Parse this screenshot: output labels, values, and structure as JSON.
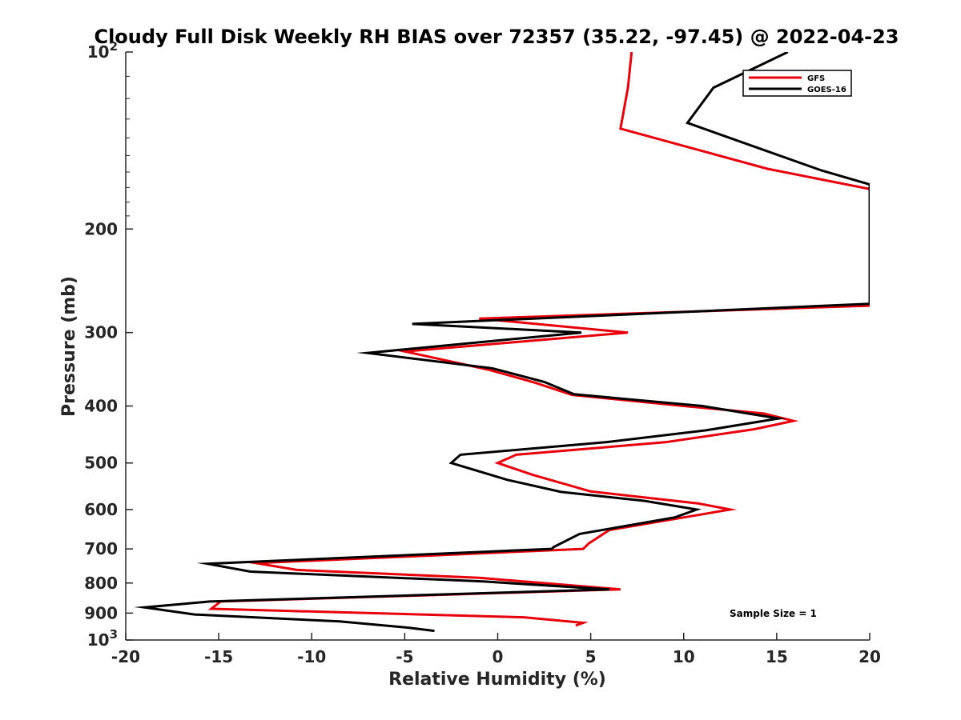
{
  "chart_data": {
    "type": "line",
    "title": "Cloudy Full Disk Weekly RH BIAS over 72357 (35.22, -97.45) @ 2022-04-23",
    "xlabel": "Relative Humidity (%)",
    "ylabel": "Pressure (mb)",
    "xlim": [
      -20,
      20
    ],
    "ylim": [
      100,
      1000
    ],
    "y_scale": "log",
    "y_reversed": true,
    "grid": false,
    "legend_position": "top-right",
    "x_ticks": [
      {
        "value": -20,
        "label": "-20"
      },
      {
        "value": -15,
        "label": "-15"
      },
      {
        "value": -10,
        "label": "-10"
      },
      {
        "value": -5,
        "label": "-5"
      },
      {
        "value": 0,
        "label": "0"
      },
      {
        "value": 5,
        "label": "5"
      },
      {
        "value": 10,
        "label": "10"
      },
      {
        "value": 15,
        "label": "15"
      },
      {
        "value": 20,
        "label": "20"
      }
    ],
    "y_ticks": [
      {
        "value": 100,
        "base": "10",
        "exp": "2"
      },
      {
        "value": 200,
        "label": "200"
      },
      {
        "value": 300,
        "label": "300"
      },
      {
        "value": 400,
        "label": "400"
      },
      {
        "value": 500,
        "label": "500"
      },
      {
        "value": 600,
        "label": "600"
      },
      {
        "value": 700,
        "label": "700"
      },
      {
        "value": 800,
        "label": "800"
      },
      {
        "value": 900,
        "label": "900"
      },
      {
        "value": 1000,
        "base": "10",
        "exp": "3"
      }
    ],
    "series": [
      {
        "name": "GFS",
        "color": "#e8000b",
        "points": [
          [
            7.2,
            100
          ],
          [
            7.0,
            115
          ],
          [
            6.6,
            135
          ],
          [
            14.5,
            158
          ],
          [
            20,
            171
          ],
          [
            20,
            270
          ],
          [
            -1,
            284
          ],
          [
            7,
            300
          ],
          [
            -5,
            323
          ],
          [
            -0.5,
            347
          ],
          [
            2,
            365
          ],
          [
            4,
            383
          ],
          [
            10,
            400
          ],
          [
            11.5,
            404
          ],
          [
            14.3,
            412
          ],
          [
            15.9,
            424
          ],
          [
            13.8,
            438
          ],
          [
            9,
            461
          ],
          [
            1,
            484
          ],
          [
            0,
            500
          ],
          [
            1.9,
            524
          ],
          [
            5,
            559
          ],
          [
            10.8,
            586
          ],
          [
            12.5,
            600
          ],
          [
            10.5,
            615
          ],
          [
            6,
            650
          ],
          [
            4.9,
            685
          ],
          [
            4.6,
            700
          ],
          [
            -13,
            740
          ],
          [
            -10.8,
            760
          ],
          [
            -1,
            784
          ],
          [
            6.6,
            820
          ],
          [
            -14.9,
            860
          ],
          [
            -15.4,
            885
          ],
          [
            1.4,
            915
          ],
          [
            4.6,
            935
          ],
          [
            4.2,
            945
          ]
        ]
      },
      {
        "name": "GOES-16",
        "color": "#000000",
        "points": [
          [
            15.6,
            100
          ],
          [
            11.6,
            115
          ],
          [
            10.2,
            132
          ],
          [
            17.4,
            159
          ],
          [
            20,
            168
          ],
          [
            20,
            268
          ],
          [
            -4.6,
            290
          ],
          [
            4.5,
            300
          ],
          [
            -7,
            325
          ],
          [
            -0.3,
            345
          ],
          [
            2.5,
            364
          ],
          [
            4.1,
            382
          ],
          [
            11,
            400
          ],
          [
            15.1,
            420
          ],
          [
            11.2,
            440
          ],
          [
            5.8,
            461
          ],
          [
            -2,
            484
          ],
          [
            -2.5,
            500
          ],
          [
            0.5,
            534
          ],
          [
            3.4,
            560
          ],
          [
            7.9,
            580
          ],
          [
            10.7,
            600
          ],
          [
            9.5,
            619
          ],
          [
            4.4,
            660
          ],
          [
            3.0,
            695
          ],
          [
            2.9,
            700
          ],
          [
            -15.6,
            742
          ],
          [
            -13.3,
            765
          ],
          [
            -0.8,
            795
          ],
          [
            6.0,
            820
          ],
          [
            -15.5,
            860
          ],
          [
            -19,
            880
          ],
          [
            -16.3,
            905
          ],
          [
            -8.5,
            930
          ],
          [
            -4.8,
            953
          ],
          [
            -3.4,
            965
          ]
        ]
      }
    ],
    "annotations": [
      "Sample Size = 1"
    ]
  }
}
